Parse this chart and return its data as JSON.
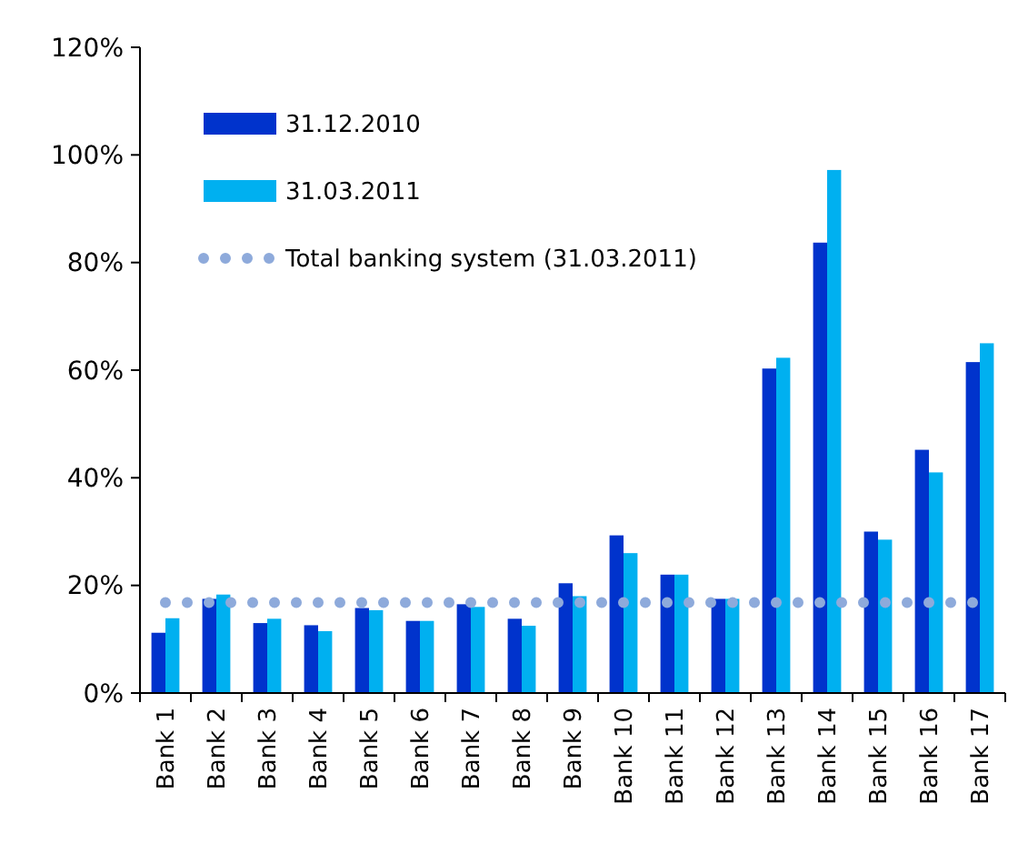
{
  "chart_data": {
    "type": "bar",
    "categories": [
      "Bank 1",
      "Bank 2",
      "Bank 3",
      "Bank 4",
      "Bank 5",
      "Bank 6",
      "Bank 7",
      "Bank 8",
      "Bank 9",
      "Bank 10",
      "Bank 11",
      "Bank 12",
      "Bank 13",
      "Bank 14",
      "Bank 15",
      "Bank 16",
      "Bank 17"
    ],
    "series": [
      {
        "name": "31.12.2010",
        "color": "#0033cc",
        "values": [
          11.2,
          17.5,
          13,
          12.6,
          15.8,
          13.4,
          16.5,
          13.8,
          20.4,
          29.3,
          22,
          17.5,
          60.3,
          83.7,
          30,
          45.2,
          61.5
        ]
      },
      {
        "name": "31.03.2011",
        "color": "#00b0f0",
        "values": [
          13.9,
          18.3,
          13.8,
          11.5,
          15.4,
          13.4,
          16,
          12.5,
          18,
          26,
          22,
          17.5,
          62.3,
          97.2,
          28.5,
          41,
          65
        ]
      },
      {
        "name": "Total banking system (31.03.2011)",
        "type": "line",
        "color": "#8eaadb",
        "line_style": "dotted",
        "values": [
          16.8,
          16.8,
          16.8,
          16.8,
          16.8,
          16.8,
          16.8,
          16.8,
          16.8,
          16.8,
          16.8,
          16.8,
          16.8,
          16.8,
          16.8,
          16.8,
          16.8
        ]
      }
    ],
    "ylim": [
      0,
      120
    ],
    "yticks": [
      {
        "value": 0,
        "label": "0%"
      },
      {
        "value": 20,
        "label": "20%"
      },
      {
        "value": 40,
        "label": "40%"
      },
      {
        "value": 60,
        "label": "60%"
      },
      {
        "value": 80,
        "label": "80%"
      },
      {
        "value": 100,
        "label": "100%"
      },
      {
        "value": 120,
        "label": "120%"
      }
    ],
    "grid": false,
    "legend": "top left"
  }
}
